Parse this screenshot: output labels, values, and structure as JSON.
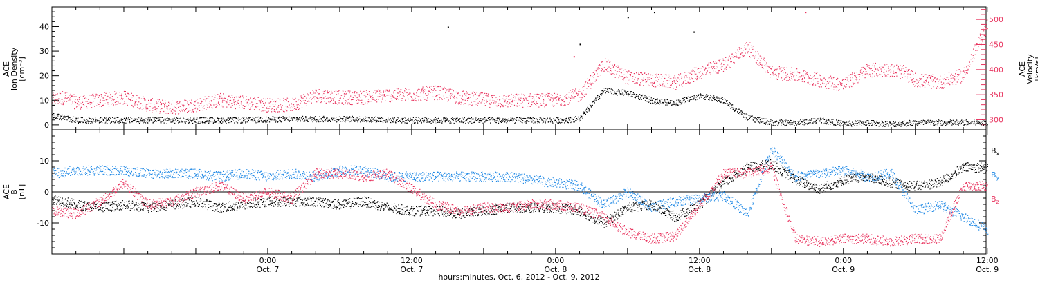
{
  "colors": {
    "black": "#000000",
    "pink": "#e8335e",
    "blue": "#1e88e5",
    "frame": "#000000",
    "bg": "#ffffff"
  },
  "footer": {
    "xlabel": "hours:minutes, Oct. 6, 2012 - Oct. 9, 2012"
  },
  "chart_data": [
    {
      "type": "scatter",
      "panel": "top",
      "ylabel_lines": [
        "ACE",
        "Ion Density",
        "[cm⁻³]"
      ],
      "y2label_lines": [
        "ACE",
        "Velocity",
        "[km/s]"
      ],
      "ylim": [
        -2,
        48
      ],
      "y2lim": [
        280,
        525
      ],
      "yticks": [
        0,
        10,
        20,
        30,
        40
      ],
      "y2ticks": [
        300,
        350,
        400,
        450,
        500
      ],
      "x_range_hours": [
        0,
        78
      ],
      "series": [
        {
          "name": "Ion Density",
          "color": "black",
          "axis": "left",
          "x": [
            0,
            2,
            5,
            10,
            15,
            20,
            25,
            30,
            34,
            38,
            40,
            42,
            44,
            46,
            48,
            50,
            52,
            54,
            56,
            58,
            60,
            62,
            64,
            66,
            68,
            70,
            72,
            74,
            76,
            78
          ],
          "values": [
            4,
            2,
            2,
            2,
            2,
            2.5,
            2.5,
            2,
            2,
            2,
            2,
            2,
            2.5,
            14,
            13,
            10,
            9,
            12,
            10,
            3,
            1,
            1,
            2,
            0.5,
            1,
            0.5,
            1,
            1,
            1,
            1
          ]
        },
        {
          "name": "Velocity",
          "color": "pink",
          "axis": "right",
          "x": [
            0,
            1,
            2,
            4,
            6,
            8,
            10,
            12,
            14,
            16,
            18,
            20,
            22,
            24,
            26,
            28,
            30,
            32,
            34,
            36,
            38,
            40,
            42,
            44,
            46,
            48,
            50,
            52,
            54,
            56,
            58,
            60,
            62,
            64,
            66,
            68,
            70,
            71,
            72,
            74,
            76,
            78
          ],
          "values": [
            340,
            345,
            335,
            340,
            345,
            330,
            325,
            330,
            340,
            335,
            330,
            330,
            350,
            345,
            345,
            350,
            350,
            355,
            345,
            340,
            338,
            340,
            340,
            350,
            410,
            385,
            380,
            375,
            395,
            410,
            445,
            395,
            390,
            380,
            370,
            400,
            400,
            395,
            380,
            375,
            390,
            490
          ]
        }
      ],
      "isolated_points": [
        {
          "color": "black",
          "x": 33.0,
          "y": 40
        },
        {
          "color": "black",
          "x": 44.0,
          "y": 33
        },
        {
          "color": "black",
          "x": 48.0,
          "y": 44
        },
        {
          "color": "black",
          "x": 50.2,
          "y": 46
        },
        {
          "color": "black",
          "x": 53.5,
          "y": 38
        },
        {
          "color": "pink",
          "x": 43.5,
          "y": 28
        },
        {
          "color": "pink",
          "x": 62.8,
          "y": 46
        }
      ]
    },
    {
      "type": "scatter",
      "panel": "bottom",
      "ylabel_lines": [
        "ACE",
        "B",
        "[nT]"
      ],
      "ylim": [
        -20,
        20
      ],
      "yticks": [
        -10,
        0,
        10
      ],
      "x_range_hours": [
        0,
        78
      ],
      "zero_line": true,
      "series": [
        {
          "name": "Bx",
          "color": "black",
          "x": [
            0,
            2,
            4,
            6,
            8,
            10,
            12,
            14,
            16,
            18,
            20,
            22,
            24,
            26,
            28,
            30,
            32,
            34,
            36,
            38,
            40,
            42,
            44,
            46,
            48,
            50,
            52,
            54,
            56,
            58,
            60,
            62,
            64,
            66,
            68,
            70,
            72,
            74,
            76,
            78
          ],
          "values": [
            -2,
            -4,
            -5,
            -4,
            -5,
            -4,
            -3,
            -5,
            -4,
            -3,
            -3,
            -3,
            -4,
            -3,
            -5,
            -6,
            -6,
            -7,
            -6,
            -5,
            -5,
            -5,
            -6,
            -10,
            -5,
            -4,
            -8,
            -4,
            3,
            8,
            9,
            4,
            1,
            4,
            5,
            3,
            2,
            3,
            8,
            8
          ]
        },
        {
          "name": "By",
          "color": "blue",
          "x": [
            0,
            2,
            4,
            6,
            8,
            10,
            12,
            14,
            16,
            18,
            20,
            22,
            24,
            26,
            28,
            30,
            32,
            34,
            36,
            38,
            40,
            42,
            44,
            46,
            48,
            50,
            52,
            54,
            56,
            58,
            60,
            62,
            64,
            66,
            68,
            70,
            72,
            74,
            76,
            78
          ],
          "values": [
            6,
            7,
            7,
            7,
            6,
            6,
            6,
            5,
            6,
            5,
            6,
            5,
            7,
            7,
            5,
            5,
            5,
            5,
            5,
            5,
            4,
            3,
            2,
            -4,
            0,
            -5,
            -3,
            -2,
            -1,
            -7,
            14,
            5,
            6,
            7,
            5,
            6,
            -6,
            -4,
            -8,
            -12
          ]
        },
        {
          "name": "Bz",
          "color": "pink",
          "x": [
            0,
            2,
            4,
            6,
            8,
            10,
            12,
            14,
            16,
            18,
            20,
            22,
            24,
            26,
            28,
            30,
            32,
            34,
            36,
            38,
            40,
            42,
            44,
            46,
            48,
            50,
            52,
            54,
            56,
            58,
            60,
            62,
            64,
            66,
            68,
            70,
            72,
            74,
            76,
            78
          ],
          "values": [
            -6,
            -7,
            -3,
            3,
            -4,
            -3,
            0,
            2,
            -2,
            0,
            -2,
            6,
            6,
            5,
            6,
            1,
            -4,
            -6,
            -5,
            -5,
            -4,
            -4,
            -5,
            -8,
            -13,
            -15,
            -14,
            -4,
            6,
            6,
            8,
            -15,
            -16,
            -15,
            -15,
            -16,
            -15,
            -15,
            2,
            2
          ]
        }
      ],
      "legend": [
        {
          "base": "B",
          "sub": "x",
          "color": "black"
        },
        {
          "base": "B",
          "sub": "y",
          "color": "blue"
        },
        {
          "base": "B",
          "sub": "z",
          "color": "pink"
        }
      ]
    }
  ],
  "x_axis": {
    "tick_labels": [
      {
        "hour": 18,
        "line1": "0:00",
        "line2": "Oct. 7"
      },
      {
        "hour": 30,
        "line1": "12:00",
        "line2": "Oct. 7"
      },
      {
        "hour": 42,
        "line1": "0:00",
        "line2": "Oct. 8"
      },
      {
        "hour": 54,
        "line1": "12:00",
        "line2": "Oct. 8"
      },
      {
        "hour": 66,
        "line1": "0:00",
        "line2": "Oct. 9"
      },
      {
        "hour": 78,
        "line1": "12:00",
        "line2": "Oct. 9"
      }
    ]
  }
}
